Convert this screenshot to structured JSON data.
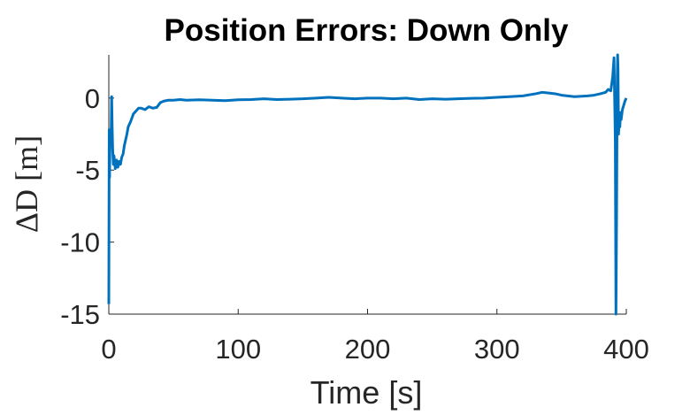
{
  "chart_data": {
    "type": "line",
    "title": "Position Errors: Down Only",
    "xlabel": "Time [s]",
    "ylabel": "ΔD [m]",
    "xlim": [
      0,
      400
    ],
    "ylim": [
      -15,
      3
    ],
    "xticks": [
      0,
      100,
      200,
      300,
      400
    ],
    "yticks": [
      -15,
      -10,
      -5,
      0
    ],
    "xtick_labels": [
      "0",
      "100",
      "200",
      "300",
      "400"
    ],
    "ytick_labels": [
      "-15",
      "-10",
      "-5",
      "0"
    ],
    "grid": false,
    "color": "#0072BD",
    "series": [
      {
        "x": [
          0,
          0.3,
          0.6,
          0.9,
          1.2,
          1.5,
          1.8,
          2.2,
          2.6,
          3.0,
          3.5,
          4,
          5,
          6,
          7,
          8,
          9,
          10,
          11,
          12,
          13,
          14,
          15,
          17,
          19,
          21,
          23,
          25,
          28,
          31,
          34,
          37,
          40,
          43,
          46,
          50,
          55,
          60,
          70,
          80,
          90,
          100,
          110,
          120,
          130,
          140,
          150,
          160,
          170,
          180,
          190,
          200,
          210,
          220,
          230,
          240,
          250,
          260,
          270,
          280,
          290,
          300,
          310,
          320,
          330,
          335,
          340,
          345,
          350,
          360,
          370,
          375,
          380,
          384,
          386,
          388,
          389.5,
          390.5,
          391.5,
          392,
          392.5,
          393,
          393.3,
          393.6,
          394,
          394.5,
          395,
          395.5,
          396,
          397,
          398,
          399,
          400
        ],
        "values": [
          -14.3,
          -2.2,
          -5.5,
          -3.0,
          -2.2,
          -3.1,
          -2.5,
          0.1,
          -2.0,
          -3.6,
          -4.6,
          -4.0,
          -4.9,
          -4.3,
          -4.8,
          -4.4,
          -4.6,
          -4.1,
          -3.9,
          -3.3,
          -2.9,
          -2.5,
          -2.0,
          -1.6,
          -1.1,
          -0.9,
          -0.7,
          -0.7,
          -0.8,
          -0.6,
          -0.7,
          -0.65,
          -0.3,
          -0.2,
          -0.15,
          -0.15,
          -0.1,
          -0.15,
          -0.12,
          -0.15,
          -0.18,
          -0.12,
          -0.1,
          -0.05,
          -0.1,
          -0.08,
          -0.05,
          0.0,
          0.05,
          0.0,
          -0.05,
          0.0,
          0.0,
          -0.05,
          0.0,
          -0.1,
          -0.05,
          -0.08,
          -0.05,
          -0.02,
          0.0,
          0.05,
          0.1,
          0.15,
          0.3,
          0.4,
          0.35,
          0.3,
          0.2,
          0.1,
          0.15,
          0.2,
          0.3,
          0.4,
          0.6,
          0.5,
          1.5,
          2.8,
          -3.0,
          -15.0,
          -8.0,
          1.5,
          3.0,
          2.0,
          -2.5,
          -1.5,
          -2.0,
          -1.0,
          -1.5,
          -0.8,
          -0.5,
          -0.2,
          0.0
        ]
      }
    ]
  }
}
